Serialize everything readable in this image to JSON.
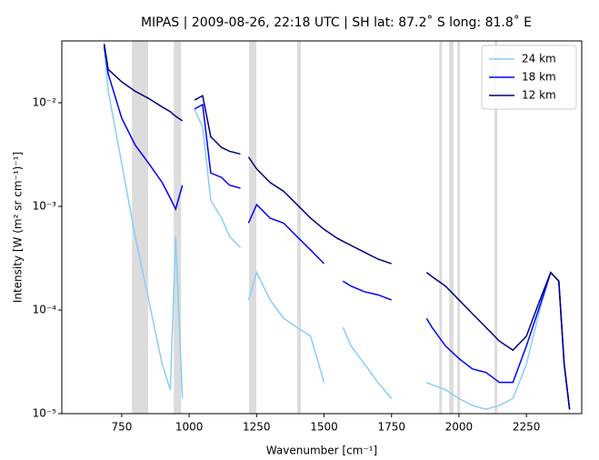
{
  "chart_data": {
    "type": "line",
    "title": "MIPAS | 2009-08-26, 22:18 UTC | SH lat: 87.2˚ S long: 81.8˚ E",
    "xlabel": "Wavenumber [cm⁻¹]",
    "ylabel": "Intensity [W (m² sr cm⁻¹)⁻¹]",
    "x": [
      685,
      700,
      750,
      800,
      850,
      900,
      930,
      950,
      975,
      1000,
      1020,
      1050,
      1080,
      1120,
      1150,
      1190,
      1205,
      1220,
      1250,
      1300,
      1350,
      1400,
      1450,
      1500,
      1550,
      1570,
      1600,
      1650,
      1700,
      1750,
      1800,
      1880,
      1900,
      1950,
      2000,
      2050,
      2100,
      2150,
      2200,
      2250,
      2300,
      2340,
      2370,
      2390,
      2410
    ],
    "series": [
      {
        "name": "24 km",
        "color": "#87cefa",
        "values": [
          0.035,
          0.013,
          0.0026,
          0.00051,
          0.000125,
          3e-05,
          1.7e-05,
          0.00051,
          1.4e-05,
          null,
          0.0087,
          0.0058,
          0.00115,
          0.00077,
          0.00051,
          0.0004,
          null,
          0.000125,
          0.00023,
          0.000125,
          8.3e-05,
          6.8e-05,
          5.6e-05,
          2e-05,
          null,
          6.8e-05,
          4.5e-05,
          3e-05,
          2e-05,
          1.4e-05,
          null,
          2e-05,
          1.9e-05,
          1.7e-05,
          1.4e-05,
          1.2e-05,
          1.1e-05,
          1.2e-05,
          1.4e-05,
          3e-05,
          0.000102,
          0.00023,
          0.00019,
          3e-05,
          1.1e-05
        ]
      },
      {
        "name": "18 km",
        "color": "#0000ff",
        "values": [
          0.035,
          0.019,
          0.0071,
          0.0039,
          0.0026,
          0.0017,
          0.0012,
          0.00094,
          0.0016,
          null,
          0.0087,
          0.0096,
          0.0021,
          0.0019,
          0.0016,
          0.0015,
          null,
          0.00069,
          0.00104,
          0.00077,
          0.00069,
          0.00051,
          0.00038,
          0.00028,
          null,
          0.00019,
          0.00017,
          0.00015,
          0.00014,
          0.000125,
          null,
          8.3e-05,
          6.8e-05,
          4.5e-05,
          3.4e-05,
          2.7e-05,
          2.5e-05,
          2e-05,
          2e-05,
          4.5e-05,
          0.00011,
          0.00023,
          0.00019,
          3e-05,
          1.1e-05
        ]
      },
      {
        "name": "12 km",
        "color": "#000080",
        "values": [
          0.037,
          0.021,
          0.0159,
          0.0129,
          0.011,
          0.0091,
          0.0082,
          0.0074,
          0.0067,
          null,
          0.0106,
          0.0117,
          0.0047,
          0.0037,
          0.0034,
          0.0032,
          null,
          0.003,
          0.0023,
          0.0017,
          0.0014,
          0.00104,
          0.00077,
          0.0006,
          0.00049,
          0.00046,
          0.00042,
          0.00036,
          0.00031,
          0.00028,
          null,
          0.00023,
          0.00021,
          0.00017,
          0.000125,
          9.2e-05,
          6.8e-05,
          5e-05,
          4.1e-05,
          5.6e-05,
          0.000125,
          0.00023,
          0.00019,
          3e-05,
          1.1e-05
        ]
      }
    ],
    "bands": [
      [
        788,
        848
      ],
      [
        943,
        970
      ],
      [
        1222,
        1249
      ],
      [
        1401,
        1414
      ],
      [
        1927,
        1937
      ],
      [
        1964,
        1980
      ],
      [
        1994,
        2004
      ],
      [
        2132,
        2142
      ]
    ],
    "band_color": "#dcdcdc",
    "xlim": [
      528,
      2455
    ],
    "ylim": [
      1e-05,
      0.0395
    ],
    "ylog": true,
    "xticks": [
      750,
      1000,
      1250,
      1500,
      1750,
      2000,
      2250
    ],
    "yticks": [
      {
        "value": 1e-05,
        "label": "10⁻⁵"
      },
      {
        "value": 0.0001,
        "label": "10⁻⁴"
      },
      {
        "value": 0.001,
        "label": "10⁻³"
      },
      {
        "value": 0.01,
        "label": "10⁻²"
      }
    ],
    "legend": "upper right"
  }
}
